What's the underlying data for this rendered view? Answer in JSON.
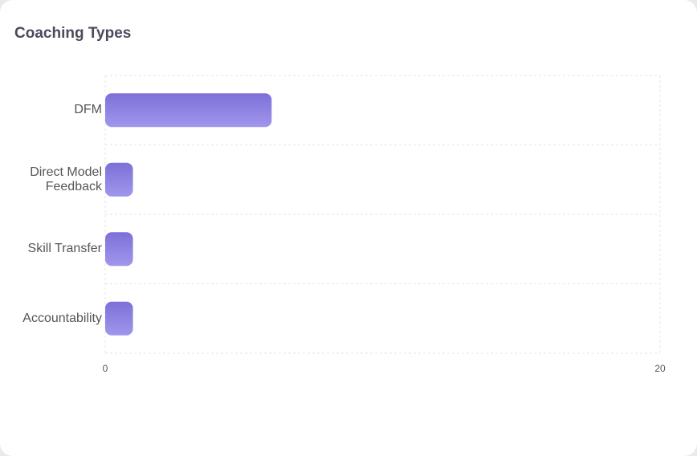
{
  "chart_data": {
    "type": "bar",
    "orientation": "horizontal",
    "title": "Coaching Types",
    "categories": [
      "DFM",
      "Direct Model Feedback",
      "Skill Transfer",
      "Accountability"
    ],
    "values": [
      6,
      1,
      1,
      1
    ],
    "color": "#8b7fe0",
    "xlim": [
      0,
      20
    ],
    "xticks": [
      0,
      20
    ],
    "grid": true
  }
}
